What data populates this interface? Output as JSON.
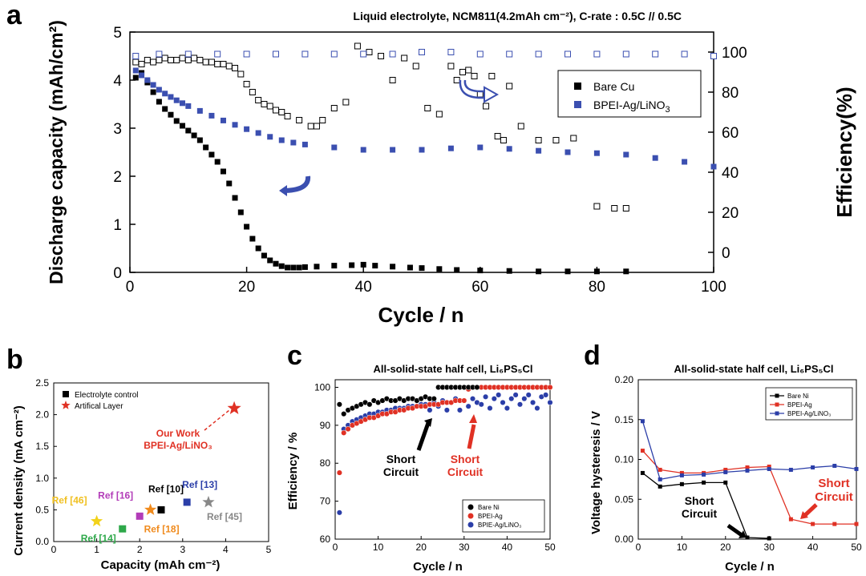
{
  "chart_data": [
    {
      "panel": "a",
      "type": "scatter",
      "title": "Liquid electrolyte, NCM811(4.2mAh cm⁻²), C-rate : 0.5C // 0.5C",
      "xlabel": "Cycle / n",
      "ylabel": "Discharge capacity (mAh/cm²)",
      "y2label": "Efficiency(%)",
      "xlim": [
        0,
        100
      ],
      "ylim": [
        0,
        5
      ],
      "y2lim": [
        -10,
        110
      ],
      "xticks": [
        "0",
        "20",
        "40",
        "60",
        "80",
        "100"
      ],
      "yticks": [
        "0",
        "1",
        "2",
        "3",
        "4",
        "5"
      ],
      "y2ticks": [
        "0",
        "20",
        "40",
        "60",
        "80",
        "100"
      ],
      "legend_position": "upper-right",
      "series": [
        {
          "name": "Bare Cu",
          "axis": "left",
          "marker": "filled-square",
          "color": "#000000",
          "x": [
            1,
            2,
            3,
            4,
            5,
            6,
            7,
            8,
            9,
            10,
            11,
            12,
            13,
            14,
            15,
            16,
            17,
            18,
            19,
            20,
            21,
            22,
            23,
            24,
            25,
            26,
            27,
            28,
            29,
            30,
            32,
            35,
            38,
            40,
            42,
            45,
            48,
            50,
            53,
            56,
            60,
            65,
            70,
            75,
            80,
            85
          ],
          "y": [
            4.05,
            4.15,
            3.95,
            3.75,
            3.55,
            3.4,
            3.28,
            3.15,
            3.05,
            2.95,
            2.85,
            2.75,
            2.6,
            2.45,
            2.3,
            2.1,
            1.85,
            1.55,
            1.25,
            0.95,
            0.7,
            0.5,
            0.35,
            0.25,
            0.18,
            0.13,
            0.1,
            0.1,
            0.1,
            0.11,
            0.12,
            0.14,
            0.15,
            0.16,
            0.14,
            0.12,
            0.1,
            0.09,
            0.07,
            0.05,
            0.04,
            0.03,
            0.02,
            0.02,
            0.02,
            0.02
          ]
        },
        {
          "name": "BPEI-Ag/LiNO3",
          "axis": "left",
          "marker": "filled-square",
          "color": "#3b4fb0",
          "x": [
            1,
            2,
            3,
            4,
            5,
            6,
            7,
            8,
            9,
            10,
            12,
            14,
            16,
            18,
            20,
            22,
            24,
            26,
            28,
            30,
            35,
            40,
            45,
            50,
            55,
            60,
            65,
            70,
            75,
            80,
            85,
            90,
            95,
            100
          ],
          "y": [
            4.2,
            4.1,
            4.0,
            3.9,
            3.8,
            3.72,
            3.65,
            3.58,
            3.52,
            3.46,
            3.36,
            3.26,
            3.16,
            3.07,
            2.98,
            2.9,
            2.82,
            2.75,
            2.7,
            2.66,
            2.6,
            2.55,
            2.55,
            2.55,
            2.58,
            2.6,
            2.57,
            2.53,
            2.5,
            2.48,
            2.45,
            2.38,
            2.3,
            2.2
          ]
        },
        {
          "name": "Bare Cu efficiency",
          "axis": "right",
          "marker": "open-square",
          "color": "#000000",
          "x": [
            1,
            2,
            3,
            4,
            5,
            6,
            7,
            8,
            9,
            10,
            11,
            12,
            13,
            14,
            15,
            16,
            17,
            18,
            19,
            20,
            21,
            22,
            23,
            24,
            25,
            26,
            27,
            29,
            31,
            32,
            33,
            35,
            37,
            39,
            41,
            43,
            45,
            47,
            49,
            51,
            53,
            55,
            56,
            57,
            58,
            59,
            60,
            61,
            62,
            63,
            64,
            65,
            67,
            70,
            73,
            76,
            80,
            83,
            85
          ],
          "y": [
            95,
            94,
            96,
            95,
            96,
            97,
            96,
            96,
            97,
            96,
            97,
            96,
            95,
            95,
            94,
            94,
            93,
            92,
            89,
            84,
            80,
            76,
            74,
            73,
            71,
            70,
            68,
            66,
            63,
            63,
            66,
            72,
            75,
            103,
            100,
            98,
            86,
            97,
            93,
            72,
            69,
            93,
            86,
            90,
            91,
            88,
            79,
            73,
            88,
            58,
            56,
            83,
            63,
            56,
            56,
            57,
            23,
            22,
            22
          ]
        },
        {
          "name": "BPEI-Ag/LiNO3 efficiency",
          "axis": "right",
          "marker": "open-square",
          "color": "#3b4fb0",
          "x": [
            1,
            5,
            10,
            15,
            20,
            25,
            30,
            35,
            40,
            45,
            50,
            55,
            60,
            65,
            70,
            75,
            80,
            85,
            90,
            95,
            100
          ],
          "y": [
            98,
            99,
            99,
            99,
            99,
            99,
            99,
            99,
            99,
            99,
            100,
            100,
            99,
            99,
            99,
            99,
            99,
            99,
            99,
            99,
            98
          ]
        }
      ],
      "annotations": [
        "curved arrow left (capacity axis)",
        "hollow arrow right (efficiency axis)"
      ]
    },
    {
      "panel": "b",
      "type": "scatter",
      "xlabel": "Capacity (mAh cm⁻²)",
      "ylabel": "Current density (mA cm⁻²)",
      "xlim": [
        0,
        5
      ],
      "ylim": [
        0,
        2.5
      ],
      "xticks": [
        "0",
        "1",
        "2",
        "3",
        "4",
        "5"
      ],
      "yticks": [
        "0.0",
        "0.5",
        "1.0",
        "1.5",
        "2.0",
        "2.5"
      ],
      "legend": [
        "Electrolyte control",
        "Artifical Layer"
      ],
      "points": [
        {
          "label": "Our Work BPEI-Ag/LiNO₃",
          "x": 4.2,
          "y": 2.1,
          "marker": "star",
          "color": "#e03124"
        },
        {
          "label": "Ref [46]",
          "x": 1.0,
          "y": 0.32,
          "marker": "star",
          "color": "#f2d21a"
        },
        {
          "label": "Ref [14]",
          "x": 1.6,
          "y": 0.2,
          "marker": "square",
          "color": "#2ea84a"
        },
        {
          "label": "Ref [16]",
          "x": 2.0,
          "y": 0.4,
          "marker": "square",
          "color": "#b23cb8"
        },
        {
          "label": "Ref [18]",
          "x": 2.25,
          "y": 0.5,
          "marker": "star",
          "color": "#f08a1c"
        },
        {
          "label": "Ref [10]",
          "x": 2.5,
          "y": 0.5,
          "marker": "square",
          "color": "#000000"
        },
        {
          "label": "Ref [13]",
          "x": 3.1,
          "y": 0.62,
          "marker": "square",
          "color": "#2b3ea8"
        },
        {
          "label": "Ref [45]",
          "x": 3.6,
          "y": 0.62,
          "marker": "star",
          "color": "#888888"
        }
      ]
    },
    {
      "panel": "c",
      "type": "scatter",
      "title": "All-solid-state half cell, Li₆PS₅Cl",
      "xlabel": "Cycle / n",
      "ylabel": "Efficiency / %",
      "xlim": [
        0,
        50
      ],
      "ylim": [
        60,
        102
      ],
      "xticks": [
        "0",
        "10",
        "20",
        "30",
        "40",
        "50"
      ],
      "yticks": [
        "60",
        "70",
        "80",
        "90",
        "100"
      ],
      "legend_position": "lower-right",
      "annotations": [
        "Short Circuit",
        "Short Circuit"
      ],
      "series": [
        {
          "name": "Bare Ni",
          "color": "#000000",
          "x": [
            1,
            2,
            3,
            4,
            5,
            6,
            7,
            8,
            9,
            10,
            11,
            12,
            13,
            14,
            15,
            16,
            17,
            18,
            19,
            20,
            21,
            22,
            23,
            24,
            25,
            26,
            27,
            28,
            29,
            30,
            31,
            32,
            33
          ],
          "y": [
            95.5,
            93,
            94,
            94.5,
            95,
            95.5,
            96,
            95.5,
            96.5,
            96,
            96.5,
            97,
            96.5,
            96.5,
            97,
            96.5,
            97,
            97,
            96.5,
            97,
            97.5,
            97,
            97,
            100,
            100,
            100,
            100,
            100,
            100,
            100,
            100,
            100,
            100
          ]
        },
        {
          "name": "BPEI-Ag",
          "color": "#e03124",
          "x": [
            1,
            2,
            3,
            4,
            5,
            6,
            7,
            8,
            9,
            10,
            11,
            12,
            13,
            14,
            15,
            16,
            17,
            18,
            19,
            20,
            21,
            22,
            23,
            24,
            25,
            26,
            27,
            28,
            29,
            30,
            31,
            32,
            33,
            34,
            35,
            36,
            37,
            38,
            39,
            40,
            41,
            42,
            43,
            44,
            45,
            46,
            47,
            48,
            49,
            50
          ],
          "y": [
            77.5,
            88,
            89,
            90,
            90.5,
            91,
            91.5,
            92,
            92,
            92.5,
            93,
            93,
            93.5,
            93.5,
            94,
            94,
            94.5,
            94.5,
            95,
            95,
            95,
            95.5,
            95.5,
            95.5,
            96,
            96,
            96,
            96.5,
            96.5,
            96.5,
            99.5,
            100,
            100,
            100,
            100,
            100,
            100,
            100,
            100,
            100,
            100,
            100,
            100,
            100,
            100,
            100,
            100,
            100,
            100,
            100
          ]
        },
        {
          "name": "BPIE-Ag/LiNO₃",
          "color": "#2b3ea8",
          "x": [
            1,
            2,
            3,
            4,
            5,
            6,
            7,
            8,
            9,
            10,
            11,
            12,
            13,
            14,
            15,
            16,
            17,
            18,
            19,
            20,
            21,
            22,
            23,
            24,
            25,
            26,
            27,
            28,
            29,
            30,
            31,
            32,
            33,
            34,
            35,
            36,
            37,
            38,
            39,
            40,
            41,
            42,
            43,
            44,
            45,
            46,
            47,
            48,
            49,
            50
          ],
          "y": [
            67,
            89,
            90,
            91,
            91.5,
            92,
            92.5,
            93,
            93,
            93.5,
            93.5,
            94,
            94,
            94.5,
            94.5,
            94.5,
            95,
            95,
            95,
            95.5,
            95.5,
            94,
            96,
            95,
            96.5,
            94,
            96,
            97,
            94,
            96.5,
            95,
            97,
            96,
            95.5,
            97.5,
            94.5,
            97,
            98,
            96,
            94.5,
            97,
            98,
            95.5,
            97,
            98,
            96,
            94.5,
            97.5,
            98,
            96
          ]
        }
      ]
    },
    {
      "panel": "d",
      "type": "line",
      "title": "All-solid-state half cell, Li₆PS₅Cl",
      "xlabel": "Cycle / n",
      "ylabel": "Voltage hysteresis / V",
      "xlim": [
        0,
        50
      ],
      "ylim": [
        0,
        0.2
      ],
      "xticks": [
        "0",
        "10",
        "20",
        "30",
        "40",
        "50"
      ],
      "yticks": [
        "0.00",
        "0.05",
        "0.10",
        "0.15",
        "0.20"
      ],
      "legend_position": "upper-right",
      "annotations": [
        "Short Circuit",
        "Short Circuit"
      ],
      "series": [
        {
          "name": "Bare Ni",
          "color": "#000000",
          "x": [
            1,
            5,
            10,
            15,
            20,
            25,
            30
          ],
          "y": [
            0.083,
            0.066,
            0.069,
            0.071,
            0.071,
            0.002,
            0.001
          ]
        },
        {
          "name": "BPEI-Ag",
          "color": "#e03124",
          "x": [
            1,
            5,
            10,
            15,
            20,
            25,
            30,
            35,
            40,
            45,
            50
          ],
          "y": [
            0.111,
            0.087,
            0.083,
            0.083,
            0.087,
            0.09,
            0.091,
            0.025,
            0.019,
            0.019,
            0.019
          ]
        },
        {
          "name": "BPEI-Ag/LiNO₃",
          "color": "#2b3ea8",
          "x": [
            1,
            5,
            10,
            15,
            20,
            25,
            30,
            35,
            40,
            45,
            50
          ],
          "y": [
            0.148,
            0.075,
            0.08,
            0.081,
            0.084,
            0.086,
            0.088,
            0.087,
            0.09,
            0.092,
            0.088
          ]
        }
      ]
    }
  ],
  "panel_letters": [
    "a",
    "b",
    "c",
    "d"
  ]
}
